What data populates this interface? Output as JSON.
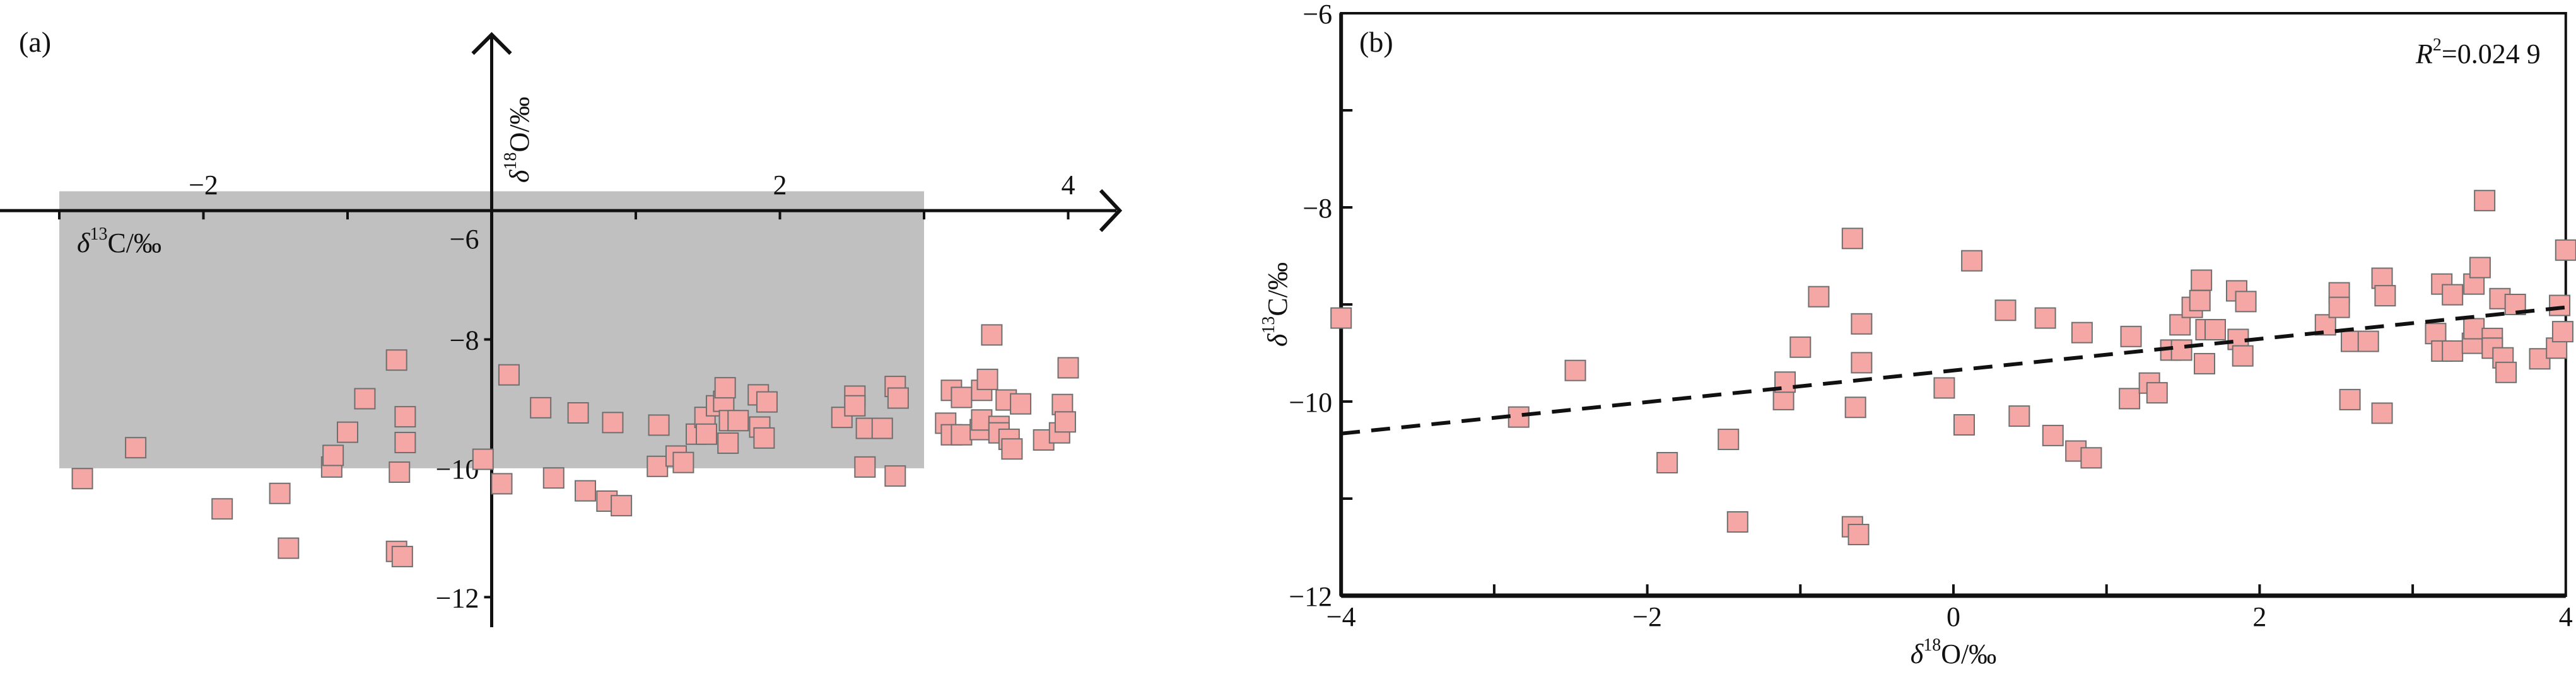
{
  "colors": {
    "marker_fill": "#f4a7a5",
    "marker_stroke": "#6f6f6f",
    "shade": "#c0c0c0",
    "axis": "#111111"
  },
  "points": [
    [
      -4.0,
      -9.14
    ],
    [
      -2.84,
      -10.16
    ],
    [
      -2.47,
      -9.68
    ],
    [
      -1.87,
      -10.63
    ],
    [
      -1.47,
      -10.39
    ],
    [
      -1.41,
      -11.24
    ],
    [
      -1.11,
      -9.98
    ],
    [
      -1.1,
      -9.8
    ],
    [
      -1.0,
      -9.44
    ],
    [
      -0.88,
      -8.92
    ],
    [
      -0.6,
      -9.2
    ],
    [
      -0.6,
      -9.6
    ],
    [
      -0.66,
      -8.32
    ],
    [
      -0.64,
      -10.06
    ],
    [
      -0.66,
      -11.29
    ],
    [
      -0.62,
      -11.37
    ],
    [
      -0.06,
      -9.86
    ],
    [
      0.07,
      -10.24
    ],
    [
      0.12,
      -8.55
    ],
    [
      0.34,
      -9.06
    ],
    [
      0.43,
      -10.15
    ],
    [
      0.6,
      -9.14
    ],
    [
      0.65,
      -10.35
    ],
    [
      0.8,
      -10.51
    ],
    [
      0.84,
      -9.29
    ],
    [
      0.9,
      -10.58
    ],
    [
      1.15,
      -9.97
    ],
    [
      1.16,
      -9.33
    ],
    [
      1.28,
      -9.81
    ],
    [
      1.33,
      -9.91
    ],
    [
      1.42,
      -9.47
    ],
    [
      1.48,
      -9.21
    ],
    [
      1.49,
      -9.47
    ],
    [
      1.56,
      -9.03
    ],
    [
      1.61,
      -8.96
    ],
    [
      1.62,
      -8.75
    ],
    [
      1.64,
      -9.61
    ],
    [
      1.65,
      -9.26
    ],
    [
      1.71,
      -9.26
    ],
    [
      1.85,
      -8.86
    ],
    [
      1.86,
      -9.36
    ],
    [
      1.89,
      -9.53
    ],
    [
      1.91,
      -8.97
    ],
    [
      2.43,
      -9.21
    ],
    [
      2.52,
      -8.88
    ],
    [
      2.52,
      -9.03
    ],
    [
      2.59,
      -9.98
    ],
    [
      2.6,
      -9.38
    ],
    [
      2.71,
      -9.38
    ],
    [
      2.8,
      -8.73
    ],
    [
      2.8,
      -10.12
    ],
    [
      2.82,
      -8.91
    ],
    [
      3.15,
      -9.3
    ],
    [
      3.19,
      -8.79
    ],
    [
      3.19,
      -9.48
    ],
    [
      3.26,
      -8.9
    ],
    [
      3.26,
      -9.48
    ],
    [
      3.39,
      -9.4
    ],
    [
      3.4,
      -8.79
    ],
    [
      3.4,
      -9.25
    ],
    [
      3.44,
      -8.62
    ],
    [
      3.47,
      -7.93
    ],
    [
      3.52,
      -9.35
    ],
    [
      3.52,
      -9.45
    ],
    [
      3.57,
      -8.94
    ],
    [
      3.59,
      -9.55
    ],
    [
      3.61,
      -9.7
    ],
    [
      3.67,
      -9.0
    ],
    [
      3.83,
      -9.56
    ],
    [
      3.94,
      -9.45
    ],
    [
      3.96,
      -9.01
    ],
    [
      3.98,
      -9.28
    ],
    [
      4.0,
      -8.44
    ]
  ],
  "chart_data": [
    {
      "type": "scatter",
      "panel_label": "(a)",
      "xlabel": "δ13C/‰",
      "xlabel_main": "δ",
      "xlabel_sup": "13",
      "xlabel_rest": "C/‰",
      "ylabel_main": "δ",
      "ylabel_sup": "18",
      "ylabel_rest": "O/‰",
      "x_ticks": [
        "−2",
        "2",
        "4"
      ],
      "x_tick_values": [
        -3,
        -2,
        -1,
        0,
        1,
        2,
        3,
        4
      ],
      "x_labeled": [
        -2,
        2,
        4
      ],
      "y_ticks": [
        "−6",
        "−8",
        "−10",
        "−12"
      ],
      "y_tick_values": [
        -6,
        -8,
        -10,
        -12
      ],
      "axis_cross_y": -6,
      "shaded_region": {
        "x": [
          -3,
          3
        ],
        "y": [
          -10,
          -5.7
        ]
      },
      "points_ref": "points"
    },
    {
      "type": "scatter",
      "panel_label": "(b)",
      "xlabel_main": "δ",
      "xlabel_sup": "18",
      "xlabel_rest": "O/‰",
      "ylabel_main": "δ",
      "ylabel_sup": "13",
      "ylabel_rest": "C/‰",
      "xlim": [
        -4,
        4
      ],
      "ylim": [
        -12,
        -6
      ],
      "x_ticks": [
        "−4",
        "−2",
        "0",
        "2",
        "4"
      ],
      "x_tick_values": [
        -4,
        -2,
        0,
        2,
        4
      ],
      "y_ticks": [
        "−6",
        "−8",
        "−10",
        "−12"
      ],
      "y_tick_values": [
        -6,
        -8,
        -10,
        -12
      ],
      "trendline": {
        "slope": 0.1625,
        "intercept": -9.68,
        "style": "dashed"
      },
      "r2_label": "R",
      "r2_sup": "2",
      "r2_value": "=0.024 9",
      "points_ref": "points"
    }
  ]
}
